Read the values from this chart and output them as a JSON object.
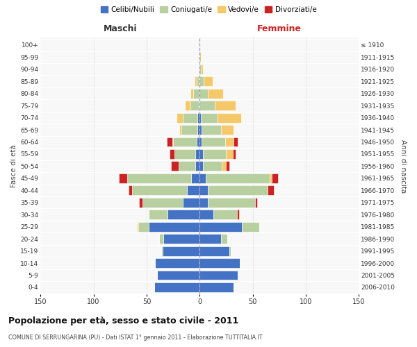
{
  "age_groups": [
    "0-4",
    "5-9",
    "10-14",
    "15-19",
    "20-24",
    "25-29",
    "30-34",
    "35-39",
    "40-44",
    "45-49",
    "50-54",
    "55-59",
    "60-64",
    "65-69",
    "70-74",
    "75-79",
    "80-84",
    "85-89",
    "90-94",
    "95-99",
    "100+"
  ],
  "birth_years": [
    "2006-2010",
    "2001-2005",
    "1996-2000",
    "1991-1995",
    "1986-1990",
    "1981-1985",
    "1976-1980",
    "1971-1975",
    "1966-1970",
    "1961-1965",
    "1956-1960",
    "1951-1955",
    "1946-1950",
    "1941-1945",
    "1936-1940",
    "1931-1935",
    "1926-1930",
    "1921-1925",
    "1916-1920",
    "1911-1915",
    "≤ 1910"
  ],
  "maschi": {
    "celibi": [
      43,
      40,
      42,
      35,
      34,
      48,
      30,
      16,
      12,
      8,
      4,
      4,
      3,
      2,
      2,
      1,
      0,
      1,
      0,
      0,
      0
    ],
    "coniugati": [
      0,
      0,
      0,
      1,
      4,
      10,
      18,
      38,
      52,
      60,
      16,
      20,
      22,
      15,
      14,
      8,
      6,
      2,
      1,
      0,
      0
    ],
    "vedovi": [
      0,
      0,
      0,
      0,
      0,
      1,
      0,
      0,
      0,
      0,
      0,
      0,
      1,
      2,
      6,
      5,
      3,
      2,
      0,
      0,
      0
    ],
    "divorziati": [
      0,
      0,
      0,
      0,
      0,
      0,
      0,
      3,
      3,
      8,
      7,
      4,
      5,
      0,
      0,
      0,
      0,
      0,
      0,
      0,
      0
    ]
  },
  "femmine": {
    "nubili": [
      32,
      36,
      38,
      28,
      20,
      40,
      13,
      8,
      8,
      6,
      3,
      3,
      2,
      2,
      1,
      0,
      0,
      0,
      0,
      0,
      0
    ],
    "coniugate": [
      0,
      0,
      0,
      1,
      6,
      16,
      22,
      44,
      56,
      60,
      18,
      22,
      22,
      18,
      16,
      14,
      8,
      4,
      1,
      0,
      0
    ],
    "vedove": [
      0,
      0,
      0,
      0,
      0,
      0,
      0,
      0,
      0,
      2,
      4,
      6,
      8,
      12,
      22,
      20,
      14,
      8,
      2,
      1,
      0
    ],
    "divorziate": [
      0,
      0,
      0,
      0,
      0,
      0,
      2,
      2,
      6,
      6,
      3,
      3,
      4,
      0,
      0,
      0,
      0,
      0,
      0,
      0,
      0
    ]
  },
  "colors": {
    "celibi": "#4472c4",
    "coniugati": "#b8cfa0",
    "vedovi": "#f5c96a",
    "divorziati": "#cc2222"
  },
  "xlim": 150,
  "title": "Popolazione per età, sesso e stato civile - 2011",
  "subtitle": "COMUNE DI SERRUNGARINA (PU) - Dati ISTAT 1° gennaio 2011 - Elaborazione TUTTITALIA.IT",
  "xlabel_left": "Maschi",
  "xlabel_right": "Femmine",
  "ylabel_left": "Fasce di età",
  "ylabel_right": "Anni di nascita",
  "legend_labels": [
    "Celibi/Nubili",
    "Coniugati/e",
    "Vedovi/e",
    "Divorziati/e"
  ],
  "bg_color": "#ececec",
  "plot_bg": "#f8f8f8",
  "grid_color": "#cccccc"
}
